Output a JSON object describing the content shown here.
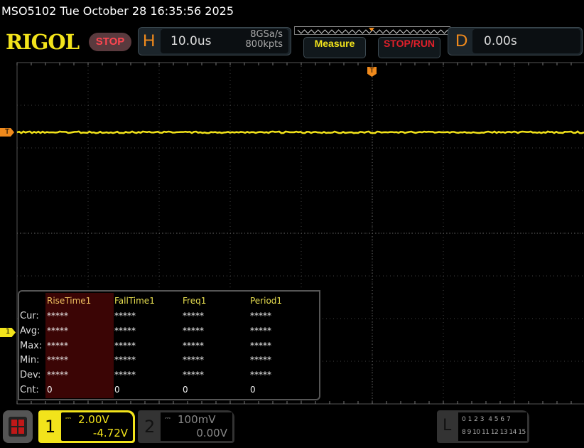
{
  "header": {
    "title": "MSO5102  Tue October 28 16:35:56 2025",
    "logo": "RIGOL",
    "run_state": "STOP",
    "horizontal": {
      "label": "H",
      "timebase": "10.0us",
      "sample_rate": "8GSa/s",
      "memory_depth": "800kpts"
    },
    "measure_button": "Measure",
    "stop_run_button": "STOP/RUN",
    "delay": {
      "label": "D",
      "value": "0.00s"
    }
  },
  "markers": {
    "trigger": "T",
    "trigger_level": "T",
    "channel1": "1"
  },
  "trace_color": "#f2e31b",
  "measurements": {
    "columns": [
      "RiseTime1",
      "FallTime1",
      "Freq1",
      "Period1"
    ],
    "rows": [
      {
        "label": "Cur:",
        "values": [
          "*****",
          "*****",
          "*****",
          "*****"
        ]
      },
      {
        "label": "Avg:",
        "values": [
          "*****",
          "*****",
          "*****",
          "*****"
        ]
      },
      {
        "label": "Max:",
        "values": [
          "*****",
          "*****",
          "*****",
          "*****"
        ]
      },
      {
        "label": "Min:",
        "values": [
          "*****",
          "*****",
          "*****",
          "*****"
        ]
      },
      {
        "label": "Dev:",
        "values": [
          "*****",
          "*****",
          "*****",
          "*****"
        ]
      },
      {
        "label": "Cnt:",
        "values": [
          "0",
          "0",
          "0",
          "0"
        ]
      }
    ]
  },
  "channels": [
    {
      "number": "1",
      "scale": "2.00V",
      "offset": "-4.72V",
      "color": "#f2e31b"
    },
    {
      "number": "2",
      "scale": "100mV",
      "offset": "0.00V",
      "color": "#888888"
    }
  ],
  "logic": {
    "label": "L",
    "row1": "0 1 2 3  4 5 6 7",
    "row2": "8 9 10 11 12 13 14 15"
  }
}
